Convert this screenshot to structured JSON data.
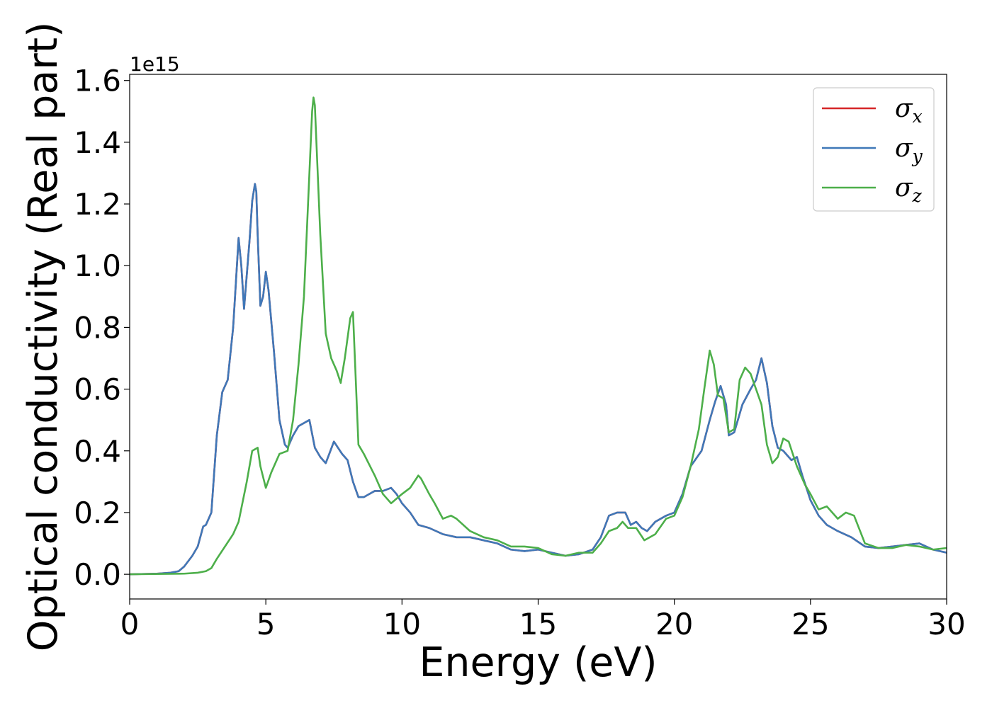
{
  "chart_data": {
    "type": "line",
    "title": "",
    "xlabel": "Energy (eV)",
    "ylabel": "Optical conductivity (Real part)",
    "y_offset_label": "1e15",
    "xlim": [
      0,
      30
    ],
    "ylim": [
      -0.08,
      1.62
    ],
    "xticks": [
      0,
      5,
      10,
      15,
      20,
      25,
      30
    ],
    "yticks": [
      0.0,
      0.2,
      0.4,
      0.6,
      0.8,
      1.0,
      1.2,
      1.4,
      1.6
    ],
    "xtick_labels": [
      "0",
      "5",
      "10",
      "15",
      "20",
      "25",
      "30"
    ],
    "ytick_labels": [
      "0.0",
      "0.2",
      "0.4",
      "0.6",
      "0.8",
      "1.0",
      "1.2",
      "1.4",
      "1.6"
    ],
    "grid": false,
    "legend_position": "top-right",
    "series": [
      {
        "name": "σx",
        "symbol": "σ",
        "subscript": "x",
        "color": "#d62728",
        "x": [
          0,
          1,
          1.5,
          1.8,
          2.0,
          2.3,
          2.5,
          2.7,
          2.8,
          3.0,
          3.2,
          3.4,
          3.6,
          3.8,
          4.0,
          4.1,
          4.2,
          4.4,
          4.5,
          4.6,
          4.65,
          4.7,
          4.8,
          4.9,
          5.0,
          5.1,
          5.3,
          5.5,
          5.7,
          5.8,
          6.0,
          6.2,
          6.4,
          6.6,
          6.8,
          7.0,
          7.2,
          7.5,
          7.8,
          8.0,
          8.2,
          8.4,
          8.6,
          8.8,
          9.0,
          9.3,
          9.6,
          9.8,
          10.0,
          10.3,
          10.6,
          11.0,
          11.5,
          12.0,
          12.5,
          13.0,
          13.5,
          14.0,
          14.5,
          15.0,
          15.5,
          16.0,
          16.5,
          17.0,
          17.3,
          17.6,
          17.9,
          18.2,
          18.4,
          18.6,
          18.8,
          19.0,
          19.3,
          19.7,
          20.0,
          20.3,
          20.6,
          21.0,
          21.3,
          21.5,
          21.7,
          21.9,
          22.0,
          22.2,
          22.5,
          22.8,
          23.0,
          23.2,
          23.4,
          23.6,
          23.8,
          24.0,
          24.3,
          24.5,
          24.7,
          25.0,
          25.3,
          25.6,
          26.0,
          26.5,
          27.0,
          27.5,
          28.0,
          28.5,
          29.0,
          29.5,
          30.0
        ],
        "values": [
          0.0,
          0.002,
          0.005,
          0.01,
          0.025,
          0.06,
          0.09,
          0.155,
          0.16,
          0.2,
          0.45,
          0.59,
          0.63,
          0.8,
          1.09,
          1.0,
          0.86,
          1.08,
          1.21,
          1.265,
          1.24,
          1.1,
          0.87,
          0.9,
          0.98,
          0.92,
          0.72,
          0.5,
          0.42,
          0.41,
          0.45,
          0.48,
          0.49,
          0.5,
          0.41,
          0.38,
          0.36,
          0.43,
          0.39,
          0.37,
          0.3,
          0.25,
          0.25,
          0.26,
          0.27,
          0.27,
          0.28,
          0.26,
          0.23,
          0.2,
          0.16,
          0.15,
          0.13,
          0.12,
          0.12,
          0.11,
          0.1,
          0.08,
          0.075,
          0.08,
          0.07,
          0.06,
          0.065,
          0.08,
          0.12,
          0.19,
          0.2,
          0.2,
          0.16,
          0.17,
          0.15,
          0.14,
          0.17,
          0.19,
          0.2,
          0.26,
          0.35,
          0.4,
          0.5,
          0.56,
          0.61,
          0.55,
          0.45,
          0.46,
          0.55,
          0.6,
          0.63,
          0.7,
          0.62,
          0.48,
          0.41,
          0.4,
          0.37,
          0.38,
          0.32,
          0.24,
          0.19,
          0.16,
          0.14,
          0.12,
          0.09,
          0.085,
          0.09,
          0.095,
          0.1,
          0.08,
          0.07
        ]
      },
      {
        "name": "σy",
        "symbol": "σ",
        "subscript": "y",
        "color": "#3f78b8",
        "x": [
          0,
          1,
          1.5,
          1.8,
          2.0,
          2.3,
          2.5,
          2.7,
          2.8,
          3.0,
          3.2,
          3.4,
          3.6,
          3.8,
          4.0,
          4.1,
          4.2,
          4.4,
          4.5,
          4.6,
          4.65,
          4.7,
          4.8,
          4.9,
          5.0,
          5.1,
          5.3,
          5.5,
          5.7,
          5.8,
          6.0,
          6.2,
          6.4,
          6.6,
          6.8,
          7.0,
          7.2,
          7.5,
          7.8,
          8.0,
          8.2,
          8.4,
          8.6,
          8.8,
          9.0,
          9.3,
          9.6,
          9.8,
          10.0,
          10.3,
          10.6,
          11.0,
          11.5,
          12.0,
          12.5,
          13.0,
          13.5,
          14.0,
          14.5,
          15.0,
          15.5,
          16.0,
          16.5,
          17.0,
          17.3,
          17.6,
          17.9,
          18.2,
          18.4,
          18.6,
          18.8,
          19.0,
          19.3,
          19.7,
          20.0,
          20.3,
          20.6,
          21.0,
          21.3,
          21.5,
          21.7,
          21.9,
          22.0,
          22.2,
          22.5,
          22.8,
          23.0,
          23.2,
          23.4,
          23.6,
          23.8,
          24.0,
          24.3,
          24.5,
          24.7,
          25.0,
          25.3,
          25.6,
          26.0,
          26.5,
          27.0,
          27.5,
          28.0,
          28.5,
          29.0,
          29.5,
          30.0
        ],
        "values": [
          0.0,
          0.002,
          0.005,
          0.01,
          0.025,
          0.06,
          0.09,
          0.155,
          0.16,
          0.2,
          0.45,
          0.59,
          0.63,
          0.8,
          1.09,
          1.0,
          0.86,
          1.08,
          1.21,
          1.265,
          1.24,
          1.1,
          0.87,
          0.9,
          0.98,
          0.92,
          0.72,
          0.5,
          0.42,
          0.41,
          0.45,
          0.48,
          0.49,
          0.5,
          0.41,
          0.38,
          0.36,
          0.43,
          0.39,
          0.37,
          0.3,
          0.25,
          0.25,
          0.26,
          0.27,
          0.27,
          0.28,
          0.26,
          0.23,
          0.2,
          0.16,
          0.15,
          0.13,
          0.12,
          0.12,
          0.11,
          0.1,
          0.08,
          0.075,
          0.08,
          0.07,
          0.06,
          0.065,
          0.08,
          0.12,
          0.19,
          0.2,
          0.2,
          0.16,
          0.17,
          0.15,
          0.14,
          0.17,
          0.19,
          0.2,
          0.26,
          0.35,
          0.4,
          0.5,
          0.56,
          0.61,
          0.55,
          0.45,
          0.46,
          0.55,
          0.6,
          0.63,
          0.7,
          0.62,
          0.48,
          0.41,
          0.4,
          0.37,
          0.38,
          0.32,
          0.24,
          0.19,
          0.16,
          0.14,
          0.12,
          0.09,
          0.085,
          0.09,
          0.095,
          0.1,
          0.08,
          0.07
        ]
      },
      {
        "name": "σz",
        "symbol": "σ",
        "subscript": "z",
        "color": "#4daf4a",
        "x": [
          0,
          2,
          2.5,
          2.8,
          3.0,
          3.2,
          3.5,
          3.8,
          4.0,
          4.3,
          4.5,
          4.7,
          4.8,
          5.0,
          5.2,
          5.5,
          5.8,
          6.0,
          6.2,
          6.4,
          6.6,
          6.7,
          6.75,
          6.8,
          7.0,
          7.2,
          7.4,
          7.6,
          7.75,
          7.9,
          8.1,
          8.2,
          8.4,
          8.6,
          9.0,
          9.3,
          9.6,
          10.0,
          10.3,
          10.6,
          10.7,
          11.0,
          11.2,
          11.5,
          11.8,
          12.0,
          12.5,
          13.0,
          13.5,
          14.0,
          14.5,
          15.0,
          15.5,
          16.0,
          16.5,
          17.0,
          17.3,
          17.6,
          17.9,
          18.1,
          18.3,
          18.6,
          18.9,
          19.3,
          19.7,
          20.0,
          20.3,
          20.6,
          20.9,
          21.1,
          21.3,
          21.45,
          21.6,
          21.8,
          22.0,
          22.2,
          22.4,
          22.6,
          22.8,
          23.0,
          23.2,
          23.4,
          23.6,
          23.8,
          24.0,
          24.2,
          24.5,
          24.8,
          25.0,
          25.3,
          25.6,
          26.0,
          26.3,
          26.6,
          27.0,
          27.5,
          28.0,
          28.5,
          29.0,
          29.5,
          30.0
        ],
        "values": [
          0.0,
          0.002,
          0.005,
          0.01,
          0.02,
          0.05,
          0.09,
          0.13,
          0.17,
          0.3,
          0.4,
          0.41,
          0.35,
          0.28,
          0.33,
          0.39,
          0.4,
          0.5,
          0.68,
          0.9,
          1.3,
          1.5,
          1.545,
          1.52,
          1.1,
          0.78,
          0.7,
          0.66,
          0.62,
          0.7,
          0.83,
          0.85,
          0.42,
          0.39,
          0.32,
          0.26,
          0.23,
          0.26,
          0.28,
          0.32,
          0.31,
          0.26,
          0.23,
          0.18,
          0.19,
          0.18,
          0.14,
          0.12,
          0.11,
          0.09,
          0.09,
          0.085,
          0.065,
          0.06,
          0.07,
          0.07,
          0.1,
          0.14,
          0.15,
          0.17,
          0.15,
          0.15,
          0.11,
          0.13,
          0.18,
          0.19,
          0.25,
          0.35,
          0.47,
          0.6,
          0.725,
          0.68,
          0.58,
          0.57,
          0.46,
          0.47,
          0.63,
          0.67,
          0.65,
          0.6,
          0.55,
          0.42,
          0.36,
          0.38,
          0.44,
          0.43,
          0.35,
          0.29,
          0.26,
          0.21,
          0.22,
          0.18,
          0.2,
          0.19,
          0.1,
          0.085,
          0.085,
          0.095,
          0.09,
          0.08,
          0.085
        ]
      }
    ]
  }
}
